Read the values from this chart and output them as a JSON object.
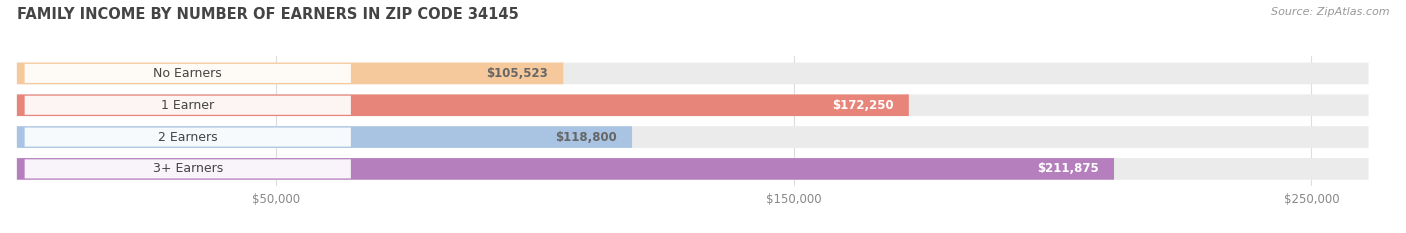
{
  "title": "FAMILY INCOME BY NUMBER OF EARNERS IN ZIP CODE 34145",
  "source": "Source: ZipAtlas.com",
  "categories": [
    "No Earners",
    "1 Earner",
    "2 Earners",
    "3+ Earners"
  ],
  "values": [
    105523,
    172250,
    118800,
    211875
  ],
  "labels": [
    "$105,523",
    "$172,250",
    "$118,800",
    "$211,875"
  ],
  "bar_colors": [
    "#f5c99b",
    "#e8857a",
    "#a8c4e2",
    "#b57fbe"
  ],
  "label_colors": [
    "#666666",
    "#ffffff",
    "#666666",
    "#ffffff"
  ],
  "x_ticks": [
    50000,
    150000,
    250000
  ],
  "x_tick_labels": [
    "$50,000",
    "$150,000",
    "$250,000"
  ],
  "xlim_max": 265000,
  "background_color": "#ffffff",
  "bar_track_color": "#ebebeb",
  "title_fontsize": 10.5,
  "source_fontsize": 8,
  "cat_fontsize": 9,
  "val_fontsize": 8.5
}
